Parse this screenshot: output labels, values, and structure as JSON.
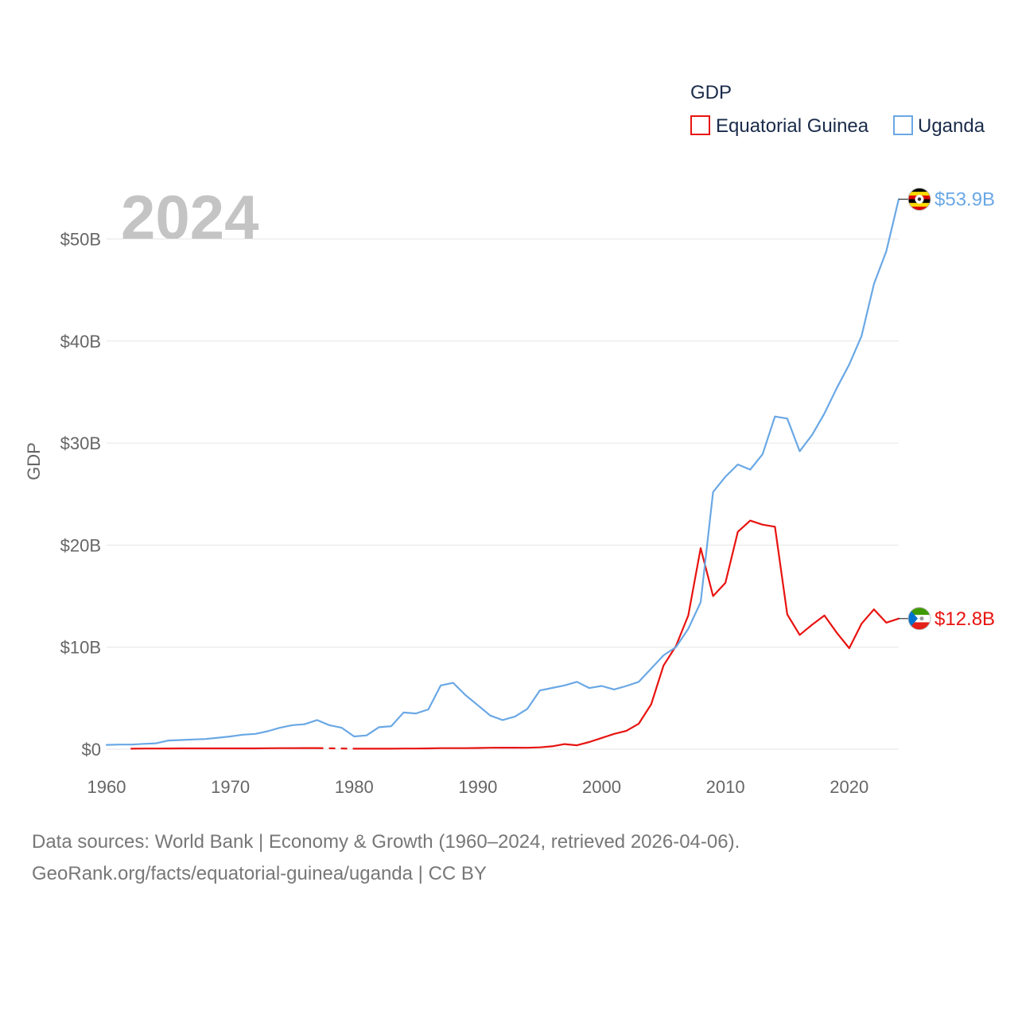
{
  "chart_data": {
    "type": "line",
    "title": "GDP",
    "year_label": "2024",
    "ylabel": "GDP",
    "xlim": [
      1960,
      2024
    ],
    "ylim": [
      0,
      55
    ],
    "unit": "billions USD",
    "x_ticks": [
      {
        "value": 1960,
        "label": "1960"
      },
      {
        "value": 1970,
        "label": "1970"
      },
      {
        "value": 1980,
        "label": "1980"
      },
      {
        "value": 1990,
        "label": "1990"
      },
      {
        "value": 2000,
        "label": "2000"
      },
      {
        "value": 2010,
        "label": "2010"
      },
      {
        "value": 2020,
        "label": "2020"
      }
    ],
    "y_ticks": [
      {
        "value": 0,
        "label": "$0"
      },
      {
        "value": 10,
        "label": "$10B"
      },
      {
        "value": 20,
        "label": "$20B"
      },
      {
        "value": 30,
        "label": "$30B"
      },
      {
        "value": 40,
        "label": "$40B"
      },
      {
        "value": 50,
        "label": "$50B"
      }
    ],
    "grid": true,
    "legend_position": "top-right",
    "series": [
      {
        "name": "Equatorial Guinea",
        "color": "#e8130f",
        "end_label": "$12.8B",
        "flag_icon": "equatorial-guinea-flag-icon",
        "segments": [
          {
            "x": [
              1962,
              1963,
              1964,
              1965,
              1966,
              1967,
              1968,
              1969,
              1970,
              1971,
              1972,
              1973,
              1974,
              1975,
              1976,
              1977
            ],
            "y": [
              0.05,
              0.06,
              0.06,
              0.07,
              0.08,
              0.08,
              0.08,
              0.08,
              0.08,
              0.08,
              0.08,
              0.09,
              0.1,
              0.1,
              0.11,
              0.11
            ]
          },
          {
            "x": [
              1980,
              1981,
              1982,
              1983,
              1984,
              1985,
              1986,
              1987,
              1988,
              1989,
              1990,
              1991,
              1992,
              1993,
              1994,
              1995,
              1996,
              1997,
              1998,
              1999,
              2000,
              2001,
              2002,
              2003,
              2004,
              2005,
              2006,
              2007,
              2008,
              2009,
              2010,
              2011,
              2012,
              2013,
              2014,
              2015,
              2016,
              2017,
              2018,
              2019,
              2020,
              2021,
              2022,
              2023,
              2024
            ],
            "y": [
              0.05,
              0.05,
              0.05,
              0.05,
              0.06,
              0.06,
              0.08,
              0.1,
              0.1,
              0.1,
              0.12,
              0.14,
              0.15,
              0.15,
              0.14,
              0.18,
              0.28,
              0.5,
              0.38,
              0.7,
              1.1,
              1.5,
              1.8,
              2.5,
              4.4,
              8.2,
              10.1,
              13.1,
              19.7,
              15.0,
              16.3,
              21.3,
              22.4,
              22.0,
              21.8,
              13.2,
              11.2,
              12.2,
              13.1,
              11.4,
              9.9,
              12.3,
              13.7,
              12.4,
              12.8
            ]
          }
        ],
        "dashed_gap": {
          "x": [
            1977,
            1980
          ],
          "y": [
            0.11,
            0.05
          ]
        }
      },
      {
        "name": "Uganda",
        "color": "#6aa8e5",
        "end_label": "$53.9B",
        "flag_icon": "uganda-flag-icon",
        "segments": [
          {
            "x": [
              1960,
              1961,
              1962,
              1963,
              1964,
              1965,
              1966,
              1967,
              1968,
              1969,
              1970,
              1971,
              1972,
              1973,
              1974,
              1975,
              1976,
              1977,
              1978,
              1979,
              1980,
              1981,
              1982,
              1983,
              1984,
              1985,
              1986,
              1987,
              1988,
              1989,
              1990,
              1991,
              1992,
              1993,
              1994,
              1995,
              1996,
              1997,
              1998,
              1999,
              2000,
              2001,
              2002,
              2003,
              2004,
              2005,
              2006,
              2007,
              2008,
              2009,
              2010,
              2011,
              2012,
              2013,
              2014,
              2015,
              2016,
              2017,
              2018,
              2019,
              2020,
              2021,
              2022,
              2023,
              2024
            ],
            "y": [
              0.42,
              0.45,
              0.45,
              0.52,
              0.58,
              0.85,
              0.9,
              0.95,
              1.0,
              1.12,
              1.25,
              1.42,
              1.5,
              1.75,
              2.1,
              2.35,
              2.45,
              2.85,
              2.35,
              2.1,
              1.25,
              1.35,
              2.15,
              2.25,
              3.6,
              3.5,
              3.9,
              6.25,
              6.5,
              5.3,
              4.3,
              3.3,
              2.85,
              3.2,
              3.95,
              5.75,
              6.0,
              6.25,
              6.6,
              5.99,
              6.2,
              5.85,
              6.2,
              6.6,
              7.9,
              9.2,
              10.0,
              11.8,
              14.4,
              25.2,
              26.7,
              27.9,
              27.4,
              28.9,
              32.6,
              32.4,
              29.2,
              30.8,
              32.9,
              35.4,
              37.7,
              40.5,
              45.6,
              48.8,
              53.9
            ]
          }
        ]
      }
    ]
  },
  "footer": {
    "line1": "Data sources: World Bank | Economy & Growth (1960–2024, retrieved 2026-04-06).",
    "line2": "GeoRank.org/facts/equatorial-guinea/uganda | CC BY"
  }
}
